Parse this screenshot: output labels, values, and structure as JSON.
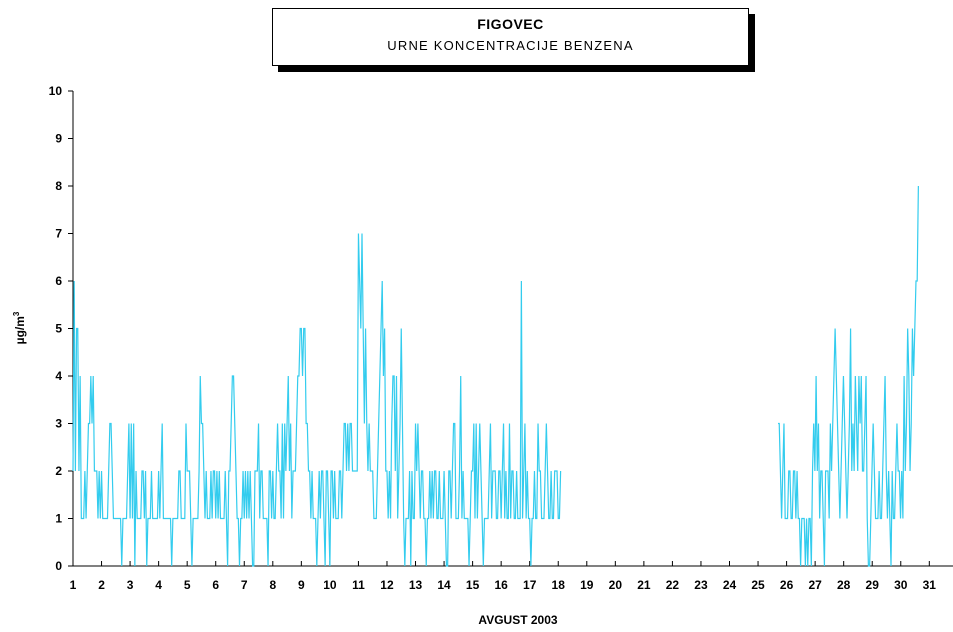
{
  "chart_data": {
    "type": "line",
    "title": "FIGOVEC",
    "subtitle": "URNE KONCENTRACIJE BENZENA",
    "xlabel": "AVGUST  2003",
    "ylabel": "µg/m",
    "ylabel_superscript": "3",
    "ylim": [
      0,
      10
    ],
    "yticks": [
      "0",
      "1",
      "2",
      "3",
      "4",
      "5",
      "6",
      "7",
      "8",
      "9",
      "10"
    ],
    "xlim": [
      1,
      31.83
    ],
    "xticks": [
      "1",
      "2",
      "3",
      "4",
      "5",
      "6",
      "7",
      "8",
      "9",
      "10",
      "11",
      "12",
      "13",
      "14",
      "15",
      "16",
      "17",
      "18",
      "19",
      "20",
      "21",
      "22",
      "23",
      "24",
      "25",
      "26",
      "27",
      "28",
      "29",
      "30",
      "31"
    ],
    "grid": false,
    "series": [
      {
        "color": "#33CCEE",
        "segments": [
          {
            "start_day": 1.0,
            "step_hours": 1,
            "values": [
              2,
              6,
              2,
              5,
              5,
              2,
              4,
              1,
              1,
              1,
              2,
              1,
              2,
              3,
              3,
              4,
              3,
              4,
              2,
              2,
              2,
              1,
              2,
              1,
              2,
              1,
              1,
              1,
              1,
              1,
              2,
              3,
              3,
              2,
              1,
              1,
              1,
              1,
              1,
              1,
              1,
              0,
              1,
              1,
              1,
              1,
              2,
              3,
              1,
              3,
              1,
              3,
              0,
              2,
              1,
              1,
              1,
              1,
              2,
              2,
              1,
              2,
              0,
              1,
              1,
              1,
              2,
              1,
              1,
              1,
              1,
              1,
              2,
              1,
              2,
              3,
              1,
              1,
              1,
              1,
              1,
              1,
              1,
              0,
              1,
              1,
              1,
              1,
              1,
              2,
              2,
              1,
              1,
              1,
              1,
              3,
              2,
              2,
              2,
              1,
              0,
              1,
              1,
              1,
              1,
              1,
              2,
              4,
              3,
              3,
              2,
              1,
              2,
              1,
              1,
              1,
              2,
              1,
              2,
              2,
              1,
              2,
              1,
              2,
              1,
              1,
              1,
              1,
              2,
              1,
              0,
              2,
              2,
              3,
              4,
              4,
              3,
              2,
              1,
              1,
              0,
              1,
              1,
              2,
              1,
              2,
              1,
              2,
              1,
              2,
              1,
              0,
              0,
              2,
              2,
              2,
              3,
              1,
              2,
              2,
              1,
              1,
              1,
              1,
              0,
              2,
              2,
              1,
              2,
              1,
              1,
              2,
              3,
              2,
              2,
              1,
              3,
              1,
              3,
              2,
              3,
              4,
              2,
              3,
              1,
              2,
              2,
              2,
              3,
              4,
              4,
              5,
              5,
              4,
              5,
              5,
              3,
              3,
              2,
              2,
              1,
              2,
              1,
              1,
              1,
              0,
              1,
              2,
              1,
              2,
              2,
              1,
              0,
              2,
              2,
              1,
              0,
              2,
              2,
              1,
              2,
              1,
              1,
              1,
              2,
              2,
              1,
              2,
              3,
              3,
              2,
              3,
              2,
              3,
              3,
              2,
              2,
              2,
              2,
              2,
              7,
              6,
              5,
              7,
              5,
              3,
              5,
              3,
              2,
              3,
              2,
              2,
              2,
              1,
              1,
              1,
              2,
              3,
              4,
              5,
              6,
              4,
              5,
              2,
              2,
              1,
              2,
              1,
              3,
              4,
              4,
              2,
              4,
              1,
              2,
              3,
              5,
              3,
              1,
              0,
              1,
              1,
              1,
              2,
              0,
              2,
              1,
              1,
              3,
              2,
              3,
              2,
              1,
              2,
              2,
              1,
              1,
              0,
              1,
              1,
              2,
              1,
              2,
              1,
              2,
              2,
              1,
              1,
              2,
              1,
              1,
              1,
              2,
              1,
              0,
              0,
              2,
              2,
              1,
              2,
              3,
              3,
              1,
              1,
              1,
              2,
              4,
              1,
              2,
              1,
              1,
              1,
              1,
              0,
              1,
              2,
              2,
              3,
              1,
              3,
              1,
              2,
              3,
              2,
              1,
              0,
              1,
              1,
              1,
              1,
              2,
              3,
              1,
              2,
              2,
              2,
              1,
              1,
              2,
              2,
              1,
              2,
              3,
              1,
              2,
              1,
              1,
              3,
              1,
              2,
              2,
              1,
              1,
              2,
              1,
              1,
              1,
              6,
              1,
              2,
              3,
              1,
              2,
              1,
              1,
              0,
              1,
              1,
              2,
              1,
              1,
              3,
              2,
              2,
              1,
              1,
              1,
              2,
              3,
              2,
              1,
              1,
              2,
              1,
              1,
              2,
              2,
              2,
              1,
              1,
              2
            ]
          },
          {
            "start_day": 25.7,
            "step_hours": 1,
            "values": [
              3,
              3,
              2,
              1,
              2,
              3,
              1,
              1,
              1,
              2,
              2,
              1,
              1,
              2,
              2,
              1,
              2,
              1,
              1,
              0,
              1,
              1,
              1,
              0,
              1,
              0,
              1,
              1,
              0,
              2,
              3,
              2,
              4,
              2,
              3,
              1,
              2,
              2,
              1,
              0,
              2,
              2,
              2,
              1,
              3,
              2,
              3,
              4,
              5,
              4,
              3,
              2,
              1,
              2,
              3,
              4,
              3,
              2,
              1,
              2,
              3,
              5,
              2,
              3,
              2,
              4,
              3,
              2,
              4,
              3,
              4,
              2,
              2,
              3,
              4,
              1,
              0,
              0,
              1,
              2,
              3,
              2,
              1,
              1,
              1,
              2,
              1,
              1,
              2,
              3,
              4,
              2,
              1,
              2,
              1,
              0,
              2,
              1,
              1,
              2,
              3,
              2,
              2,
              1,
              2,
              1,
              4,
              2,
              3,
              5,
              4,
              2,
              3,
              5,
              4,
              5,
              6,
              6,
              8
            ]
          }
        ]
      }
    ]
  }
}
